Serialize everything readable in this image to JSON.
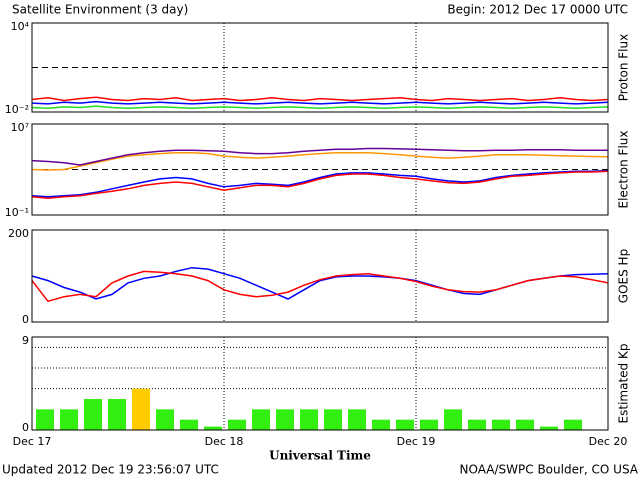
{
  "header": {
    "title": "Satellite Environment (3 day)",
    "begin": "Begin:  2012 Dec 17 0000 UTC"
  },
  "footer": {
    "updated": "Updated 2012 Dec 19 23:56:07 UTC",
    "source": "NOAA/SWPC Boulder, CO USA"
  },
  "x_axis": {
    "label": "Universal Time",
    "xlim": [
      0,
      72
    ],
    "xticks": [
      {
        "value": 0,
        "label": "Dec 17"
      },
      {
        "value": 24,
        "label": "Dec 18"
      },
      {
        "value": 48,
        "label": "Dec 19"
      },
      {
        "value": 72,
        "label": "Dec 20"
      }
    ],
    "x": [
      0,
      2,
      4,
      6,
      8,
      10,
      12,
      14,
      16,
      18,
      20,
      22,
      24,
      26,
      28,
      30,
      32,
      34,
      36,
      38,
      40,
      42,
      44,
      46,
      48,
      50,
      52,
      54,
      56,
      58,
      60,
      62,
      64,
      66,
      68,
      70,
      72
    ]
  },
  "chart_data": [
    {
      "type": "line",
      "ylabel": "Proton Flux",
      "log": true,
      "ylim": [
        0.01,
        10000
      ],
      "yticks": [
        {
          "value": 10000,
          "label": "10⁴"
        },
        {
          "value": 0.01,
          "label": "10⁻²"
        }
      ],
      "threshold": 10,
      "series": [
        {
          "color": "#ff0000",
          "values": [
            0.07,
            0.09,
            0.06,
            0.08,
            0.1,
            0.07,
            0.06,
            0.08,
            0.07,
            0.09,
            0.06,
            0.07,
            0.08,
            0.06,
            0.07,
            0.09,
            0.07,
            0.06,
            0.08,
            0.07,
            0.06,
            0.07,
            0.08,
            0.09,
            0.07,
            0.06,
            0.08,
            0.07,
            0.06,
            0.07,
            0.08,
            0.06,
            0.07,
            0.09,
            0.07,
            0.06,
            0.07
          ]
        },
        {
          "color": "#0000ff",
          "values": [
            0.04,
            0.035,
            0.045,
            0.04,
            0.05,
            0.04,
            0.035,
            0.04,
            0.045,
            0.04,
            0.035,
            0.04,
            0.045,
            0.04,
            0.035,
            0.04,
            0.045,
            0.04,
            0.035,
            0.04,
            0.045,
            0.04,
            0.035,
            0.04,
            0.045,
            0.04,
            0.035,
            0.04,
            0.045,
            0.04,
            0.035,
            0.04,
            0.045,
            0.04,
            0.035,
            0.04,
            0.045
          ]
        },
        {
          "color": "#22dd22",
          "values": [
            0.02,
            0.018,
            0.022,
            0.02,
            0.025,
            0.02,
            0.018,
            0.02,
            0.022,
            0.02,
            0.018,
            0.02,
            0.022,
            0.02,
            0.018,
            0.02,
            0.022,
            0.02,
            0.018,
            0.02,
            0.022,
            0.02,
            0.018,
            0.02,
            0.022,
            0.02,
            0.018,
            0.02,
            0.022,
            0.02,
            0.018,
            0.02,
            0.022,
            0.02,
            0.018,
            0.02,
            0.022
          ]
        }
      ]
    },
    {
      "type": "line",
      "ylabel": "Electron Flux",
      "log": true,
      "ylim": [
        0.1,
        10000000
      ],
      "yticks": [
        {
          "value": 10000000,
          "label": "10⁷"
        },
        {
          "value": 0.1,
          "label": "10⁻¹"
        }
      ],
      "threshold": 1000,
      "series": [
        {
          "color": "#ff9900",
          "values": [
            1000,
            900,
            1000,
            2000,
            4000,
            8000,
            15000,
            20000,
            25000,
            30000,
            30000,
            25000,
            15000,
            12000,
            10000,
            12000,
            15000,
            20000,
            25000,
            30000,
            30000,
            30000,
            25000,
            20000,
            15000,
            12000,
            10000,
            12000,
            15000,
            20000,
            20000,
            20000,
            18000,
            16000,
            15000,
            14000,
            13000
          ]
        },
        {
          "color": "#660099",
          "values": [
            6000,
            5000,
            4000,
            2500,
            5000,
            10000,
            20000,
            30000,
            40000,
            50000,
            50000,
            45000,
            40000,
            30000,
            25000,
            25000,
            30000,
            40000,
            50000,
            60000,
            60000,
            70000,
            70000,
            65000,
            60000,
            55000,
            50000,
            45000,
            45000,
            50000,
            50000,
            55000,
            55000,
            55000,
            50000,
            50000,
            50000
          ]
        },
        {
          "color": "#0000ff",
          "values": [
            5,
            4,
            5,
            6,
            10,
            20,
            40,
            80,
            150,
            200,
            150,
            60,
            30,
            40,
            60,
            50,
            40,
            80,
            200,
            400,
            500,
            500,
            400,
            300,
            250,
            150,
            100,
            80,
            100,
            200,
            300,
            400,
            500,
            600,
            700,
            700,
            800
          ]
        },
        {
          "color": "#ff0000",
          "values": [
            4,
            3,
            4,
            5,
            8,
            12,
            20,
            40,
            60,
            80,
            60,
            30,
            15,
            25,
            40,
            40,
            30,
            60,
            150,
            300,
            400,
            400,
            300,
            200,
            150,
            100,
            70,
            60,
            80,
            150,
            250,
            300,
            400,
            500,
            600,
            600,
            700
          ]
        }
      ]
    },
    {
      "type": "line",
      "ylabel": "GOES Hp",
      "log": false,
      "ylim": [
        0,
        200
      ],
      "yticks": [
        200,
        0
      ],
      "series": [
        {
          "color": "#0000ff",
          "values": [
            100,
            90,
            75,
            65,
            50,
            60,
            85,
            95,
            100,
            110,
            118,
            115,
            105,
            95,
            80,
            65,
            50,
            70,
            90,
            98,
            100,
            100,
            98,
            95,
            90,
            80,
            70,
            62,
            60,
            70,
            80,
            90,
            95,
            100,
            103,
            104,
            105
          ]
        },
        {
          "color": "#ff0000",
          "values": [
            90,
            45,
            55,
            60,
            55,
            85,
            100,
            110,
            108,
            105,
            100,
            90,
            70,
            60,
            55,
            58,
            65,
            80,
            92,
            100,
            103,
            105,
            100,
            95,
            88,
            78,
            70,
            66,
            65,
            70,
            80,
            90,
            95,
            100,
            98,
            92,
            85
          ]
        }
      ]
    },
    {
      "type": "bar",
      "ylabel": "Estimated Kp",
      "log": false,
      "ylim": [
        0,
        9
      ],
      "yticks": [
        9,
        0
      ],
      "gridlines": [
        4,
        6,
        8
      ],
      "color": "#33ee11",
      "high_color": "#ffcc00",
      "high_from": 4,
      "values": [
        2,
        2,
        3,
        3,
        4,
        2,
        1,
        0.33,
        1,
        2,
        2,
        2,
        2,
        2,
        1,
        1,
        1,
        2,
        1,
        1,
        1,
        0.33,
        1,
        null
      ]
    }
  ]
}
